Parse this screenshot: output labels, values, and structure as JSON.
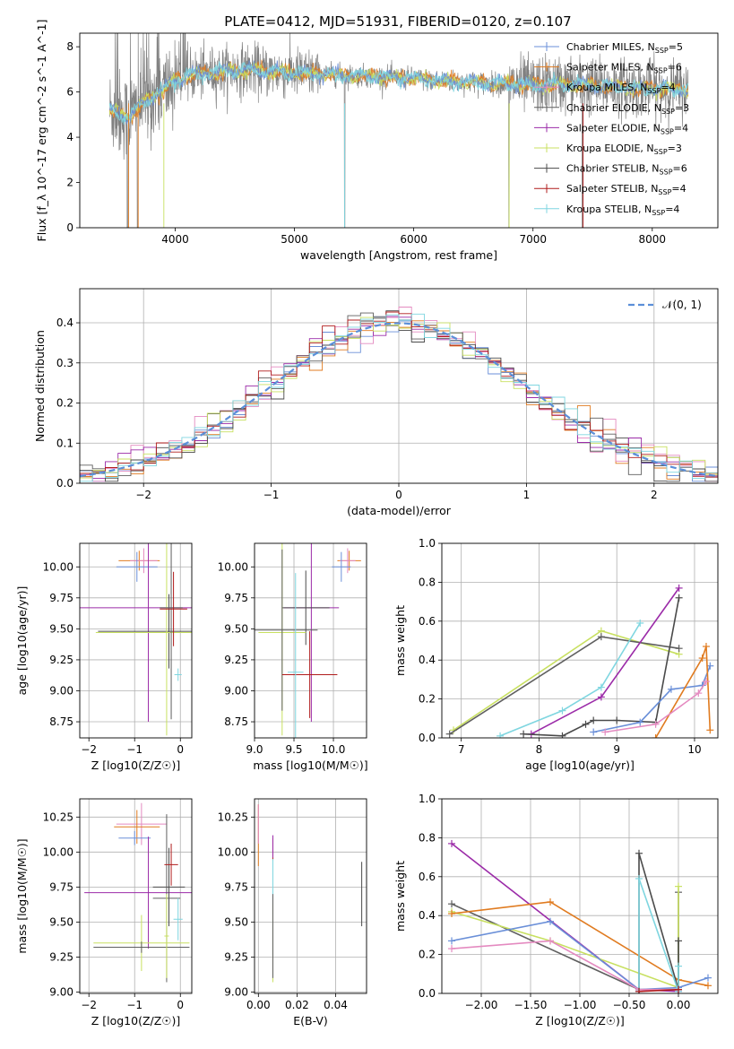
{
  "figure": {
    "title": "PLATE=0412, MJD=51931, FIBERID=0120, z=0.107"
  },
  "colors": {
    "Chabrier MILES": "#6a8fd8",
    "Salpeter MILES": "#e07b20",
    "Kroupa MILES": "#e48ac0",
    "Chabrier ELODIE": "#5f5f5f",
    "Salpeter ELODIE": "#9b2ba8",
    "Kroupa ELODIE": "#c8e060",
    "Chabrier STELIB": "#4a4a4a",
    "Salpeter STELIB": "#b01c1c",
    "Kroupa STELIB": "#7fd6e0",
    "data": "#808080",
    "gaussian": "#5b8fd8"
  },
  "chart_data": [
    {
      "id": "spectrum",
      "type": "line",
      "title": "PLATE=0412, MJD=51931, FIBERID=0120, z=0.107",
      "xlabel": "wavelength [Angstrom, rest frame]",
      "ylabel": "Flux [f_λ 10^-17 erg cm^-2 s^-1 A^-1]",
      "xlim": [
        3200,
        8550
      ],
      "ylim": [
        0,
        8.6
      ],
      "xticks": [
        4000,
        5000,
        6000,
        7000,
        8000
      ],
      "yticks": [
        0,
        2,
        4,
        6,
        8
      ],
      "legend_position": "top-right",
      "legend": [
        {
          "name": "Chabrier MILES",
          "nssp": "5"
        },
        {
          "name": "Salpeter MILES",
          "nssp": "6"
        },
        {
          "name": "Kroupa MILES",
          "nssp": "4"
        },
        {
          "name": "Chabrier ELODIE",
          "nssp": "3"
        },
        {
          "name": "Salpeter ELODIE",
          "nssp": "4"
        },
        {
          "name": "Kroupa ELODIE",
          "nssp": "3"
        },
        {
          "name": "Chabrier STELIB",
          "nssp": "6"
        },
        {
          "name": "Salpeter STELIB",
          "nssp": "4"
        },
        {
          "name": "Kroupa STELIB",
          "nssp": "4"
        }
      ],
      "continuum": {
        "x": [
          3450,
          3600,
          3700,
          3800,
          3900,
          4000,
          4100,
          4200,
          4400,
          4600,
          4800,
          5000,
          5200,
          5400,
          5600,
          5800,
          6000,
          6200,
          6400,
          6600,
          6800,
          7000,
          7200,
          7400,
          7600,
          7800,
          8000,
          8300
        ],
        "y": [
          5.2,
          4.9,
          5.3,
          5.8,
          6.1,
          6.5,
          6.7,
          6.8,
          6.9,
          7.0,
          6.9,
          6.85,
          6.8,
          6.75,
          6.7,
          6.65,
          6.6,
          6.5,
          6.45,
          6.4,
          6.35,
          6.3,
          6.35,
          6.3,
          6.25,
          6.2,
          6.15,
          6.1
        ]
      }
    },
    {
      "id": "residuals",
      "type": "line",
      "xlabel": "(data-model)/error",
      "ylabel": "Normed distribution",
      "xlim": [
        -2.5,
        2.5
      ],
      "ylim": [
        0,
        0.485
      ],
      "xticks": [
        -2,
        -1,
        0,
        1,
        2
      ],
      "yticks": [
        0.0,
        0.1,
        0.2,
        0.3,
        0.4
      ],
      "grid": true,
      "legend_position": "top-right",
      "gaussian_label": "𝒩(0, 1)",
      "bin_width": 0.1
    },
    {
      "id": "age-vs-Z",
      "type": "scatter",
      "xlabel": "Z [log10(Z/Z☉)]",
      "ylabel": "age  [log10(age/yr)]",
      "xlim": [
        -2.2,
        0.25
      ],
      "ylim": [
        8.62,
        10.19
      ],
      "xticks": [
        -2,
        -1,
        0
      ],
      "yticks": [
        8.75,
        9.0,
        9.25,
        9.5,
        9.75,
        10.0
      ],
      "grid": true,
      "points": [
        {
          "series": "Salpeter MILES",
          "x": -0.9,
          "xerr": 0.45,
          "y": 10.05,
          "yerr": 0.08
        },
        {
          "series": "Kroupa MILES",
          "x": -0.8,
          "xerr": 0.3,
          "y": 10.05,
          "yerr": 0.1
        },
        {
          "series": "Chabrier MILES",
          "x": -0.95,
          "xerr": 0.45,
          "y": 10.0,
          "yerr": 0.12
        },
        {
          "series": "Salpeter ELODIE",
          "x": -0.7,
          "xerr": 1.5,
          "y": 9.67,
          "yerr": 0.92
        },
        {
          "series": "Chabrier STELIB",
          "x": -0.25,
          "xerr": 1.55,
          "y": 9.48,
          "yerr": 0.3
        },
        {
          "series": "Kroupa ELODIE",
          "x": -0.3,
          "xerr": 1.55,
          "y": 9.47,
          "yerr": 0.83
        },
        {
          "series": "Chabrier ELODIE",
          "x": -0.2,
          "xerr": 0.25,
          "y": 9.67,
          "yerr": 0.9
        },
        {
          "series": "Salpeter STELIB",
          "x": -0.15,
          "xerr": 0.3,
          "y": 9.66,
          "yerr": 0.3
        },
        {
          "series": "Kroupa STELIB",
          "x": -0.05,
          "xerr": 0.08,
          "y": 9.13,
          "yerr": 0.05
        }
      ]
    },
    {
      "id": "age-vs-mass",
      "type": "scatter",
      "xlabel": "mass [log10(M/M☉)]",
      "ylabel": "",
      "xlim": [
        9.0,
        10.42
      ],
      "ylim": [
        8.62,
        10.19
      ],
      "xticks": [
        9.0,
        9.5,
        10.0
      ],
      "yticks": [
        8.75,
        9.0,
        9.25,
        9.5,
        9.75,
        10.0
      ],
      "grid": true,
      "points": [
        {
          "series": "Salpeter MILES",
          "x": 10.2,
          "xerr": 0.15,
          "y": 10.05,
          "yerr": 0.08
        },
        {
          "series": "Kroupa MILES",
          "x": 10.18,
          "xerr": 0.1,
          "y": 10.05,
          "yerr": 0.1
        },
        {
          "series": "Chabrier MILES",
          "x": 10.1,
          "xerr": 0.12,
          "y": 10.0,
          "yerr": 0.12
        },
        {
          "series": "Salpeter ELODIE",
          "x": 9.72,
          "xerr": 0.35,
          "y": 9.67,
          "yerr": 0.92
        },
        {
          "series": "Chabrier STELIB",
          "x": 9.65,
          "xerr": 0.3,
          "y": 9.67,
          "yerr": 0.3
        },
        {
          "series": "Kroupa ELODIE",
          "x": 9.35,
          "xerr": 0.3,
          "y": 9.47,
          "yerr": 0.83
        },
        {
          "series": "Chabrier ELODIE",
          "x": 9.35,
          "xerr": 0.45,
          "y": 9.49,
          "yerr": 0.65
        },
        {
          "series": "Salpeter STELIB",
          "x": 9.7,
          "xerr": 0.35,
          "y": 9.13,
          "yerr": 0.35
        },
        {
          "series": "Kroupa STELIB",
          "x": 9.52,
          "xerr": 0.1,
          "y": 9.15,
          "yerr": 0.8
        }
      ]
    },
    {
      "id": "massweight-vs-age",
      "type": "line",
      "xlabel": "age  [log10(age/yr)]",
      "ylabel": "mass weight",
      "xlim": [
        6.75,
        10.3
      ],
      "ylim": [
        0,
        1.0
      ],
      "xticks": [
        7,
        8,
        9,
        10
      ],
      "yticks": [
        0.0,
        0.2,
        0.4,
        0.6,
        0.8,
        1.0
      ],
      "grid": true,
      "series": [
        {
          "name": "Kroupa ELODIE",
          "x": [
            6.9,
            8.8,
            9.8
          ],
          "y": [
            0.04,
            0.55,
            0.43
          ]
        },
        {
          "name": "Chabrier ELODIE",
          "x": [
            6.85,
            8.8,
            9.8
          ],
          "y": [
            0.02,
            0.52,
            0.46
          ]
        },
        {
          "name": "Kroupa STELIB",
          "x": [
            7.5,
            8.3,
            8.8,
            9.3
          ],
          "y": [
            0.01,
            0.14,
            0.26,
            0.59
          ]
        },
        {
          "name": "Salpeter ELODIE",
          "x": [
            7.9,
            8.8,
            9.8
          ],
          "y": [
            0.02,
            0.21,
            0.77
          ]
        },
        {
          "name": "Chabrier STELIB",
          "x": [
            7.8,
            8.3,
            8.6,
            8.7,
            9.0,
            9.5,
            9.8
          ],
          "y": [
            0.02,
            0.01,
            0.07,
            0.09,
            0.09,
            0.08,
            0.72
          ]
        },
        {
          "name": "Chabrier MILES",
          "x": [
            8.7,
            9.3,
            9.7,
            10.1,
            10.2
          ],
          "y": [
            0.03,
            0.08,
            0.25,
            0.27,
            0.37
          ]
        },
        {
          "name": "Salpeter MILES",
          "x": [
            9.5,
            10.1,
            10.15,
            10.2
          ],
          "y": [
            0.0,
            0.41,
            0.47,
            0.04
          ]
        },
        {
          "name": "Kroupa MILES",
          "x": [
            8.85,
            9.5,
            10.05,
            10.15
          ],
          "y": [
            0.03,
            0.07,
            0.23,
            0.29
          ]
        }
      ]
    },
    {
      "id": "mass-vs-Z",
      "type": "scatter",
      "xlabel": "Z [log10(Z/Z☉)]",
      "ylabel": "mass [log10(M/M☉)]",
      "xlim": [
        -2.2,
        0.25
      ],
      "ylim": [
        8.99,
        10.38
      ],
      "xticks": [
        -2,
        -1,
        0
      ],
      "yticks": [
        9.0,
        9.25,
        9.5,
        9.75,
        10.0,
        10.25
      ],
      "grid": true,
      "points": [
        {
          "series": "Kroupa MILES",
          "x": -0.85,
          "xerr": 0.55,
          "y": 10.2,
          "yerr": 0.15
        },
        {
          "series": "Salpeter MILES",
          "x": -0.95,
          "xerr": 0.5,
          "y": 10.18,
          "yerr": 0.12
        },
        {
          "series": "Chabrier MILES",
          "x": -1.0,
          "xerr": 0.35,
          "y": 10.1,
          "yerr": 0.05
        },
        {
          "series": "Salpeter ELODIE",
          "x": -0.7,
          "xerr": 1.4,
          "y": 9.71,
          "yerr": 0.4
        },
        {
          "series": "Chabrier STELIB",
          "x": -0.25,
          "xerr": 0.35,
          "y": 9.75,
          "yerr": 0.28
        },
        {
          "series": "Chabrier ELODIE",
          "x": -0.3,
          "xerr": 0.3,
          "y": 9.67,
          "yerr": 0.6
        },
        {
          "series": "Kroupa ELODIE",
          "x": -0.85,
          "xerr": 1.05,
          "y": 9.35,
          "yerr": 0.2
        },
        {
          "series": "Chabrier ELODIE",
          "x": -0.85,
          "xerr": 1.05,
          "y": 9.32,
          "yerr": 0.04
        },
        {
          "series": "Salpeter STELIB",
          "x": -0.2,
          "xerr": 0.15,
          "y": 9.91,
          "yerr": 0.15
        },
        {
          "series": "Kroupa STELIB",
          "x": -0.05,
          "xerr": 0.1,
          "y": 9.52,
          "yerr": 0.15
        },
        {
          "series": "Kroupa ELODIE",
          "x": -0.3,
          "xerr": 0.05,
          "y": 9.4,
          "yerr": 0.3
        }
      ]
    },
    {
      "id": "mass-vs-EBV",
      "type": "scatter",
      "xlabel": "E(B-V)",
      "ylabel": "",
      "xlim": [
        -0.002,
        0.056
      ],
      "ylim": [
        8.99,
        10.38
      ],
      "xticks": [
        0.0,
        0.02,
        0.04
      ],
      "yticks": [
        9.0,
        9.25,
        9.5,
        9.75,
        10.0,
        10.25
      ],
      "grid": true,
      "points": [
        {
          "series": "Salpeter MILES",
          "x": 0.0,
          "y": 10.12,
          "yerr": 0.22
        },
        {
          "series": "Kroupa MILES",
          "x": 0.0,
          "y": 10.2,
          "yerr": 0.14
        },
        {
          "series": "Salpeter STELIB",
          "x": 0.0075,
          "y": 10.02,
          "yerr": 0.08
        },
        {
          "series": "Salpeter ELODIE",
          "x": 0.0075,
          "y": 10.04,
          "yerr": 0.08
        },
        {
          "series": "Kroupa STELIB",
          "x": 0.0075,
          "y": 9.6,
          "yerr": 0.35
        },
        {
          "series": "Kroupa ELODIE",
          "x": 0.0075,
          "y": 9.35,
          "yerr": 0.28
        },
        {
          "series": "Chabrier ELODIE",
          "x": 0.0075,
          "y": 9.4,
          "yerr": 0.3
        },
        {
          "series": "Chabrier STELIB",
          "x": 0.0535,
          "y": 9.7,
          "yerr": 0.23
        }
      ]
    },
    {
      "id": "massweight-vs-Z",
      "type": "line",
      "xlabel": "Z [log10(Z/Z☉)]",
      "ylabel": "mass weight",
      "xlim": [
        -2.4,
        0.4
      ],
      "ylim": [
        0,
        1.0
      ],
      "xticks": [
        -2.0,
        -1.5,
        -1.0,
        -0.5,
        0.0
      ],
      "yticks": [
        0.0,
        0.2,
        0.4,
        0.6,
        0.8,
        1.0
      ],
      "grid": true,
      "series": [
        {
          "name": "Salpeter ELODIE",
          "x": [
            -2.3,
            -0.4,
            0.0
          ],
          "y": [
            0.77,
            0.02,
            0.01
          ]
        },
        {
          "name": "Chabrier ELODIE",
          "x": [
            -2.3,
            -0.4,
            0.0,
            0.0
          ],
          "y": [
            0.46,
            0.02,
            0.02,
            0.52
          ]
        },
        {
          "name": "Kroupa ELODIE",
          "x": [
            -2.3,
            -1.3,
            0.0,
            0.0
          ],
          "y": [
            0.42,
            0.27,
            0.03,
            0.55
          ]
        },
        {
          "name": "Salpeter MILES",
          "x": [
            -2.3,
            -1.3,
            0.0,
            0.3
          ],
          "y": [
            0.41,
            0.47,
            0.07,
            0.04
          ]
        },
        {
          "name": "Chabrier MILES",
          "x": [
            -2.3,
            -1.3,
            -0.4,
            0.0,
            0.3
          ],
          "y": [
            0.27,
            0.37,
            0.02,
            0.03,
            0.08
          ]
        },
        {
          "name": "Kroupa MILES",
          "x": [
            -2.3,
            -1.3,
            -0.4,
            0.0
          ],
          "y": [
            0.23,
            0.27,
            0.02,
            0.02
          ]
        },
        {
          "name": "Chabrier STELIB",
          "x": [
            -0.4,
            -0.4,
            0.0,
            0.0
          ],
          "y": [
            0.01,
            0.72,
            0.02,
            0.27
          ]
        },
        {
          "name": "Kroupa STELIB",
          "x": [
            -0.4,
            -0.4,
            0.0,
            0.0
          ],
          "y": [
            0.01,
            0.59,
            0.01,
            0.14
          ]
        },
        {
          "name": "Salpeter STELIB",
          "x": [
            -0.4,
            0.0
          ],
          "y": [
            0.01,
            0.02
          ]
        }
      ]
    }
  ]
}
